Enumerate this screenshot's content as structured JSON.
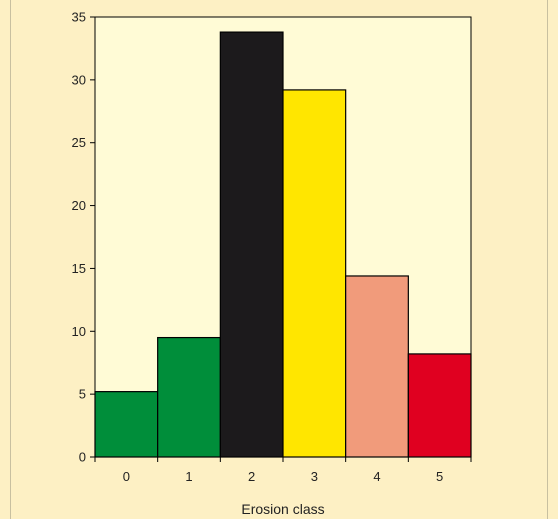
{
  "chart_data": {
    "type": "bar",
    "title": "",
    "xlabel": "Erosion class",
    "ylabel": "",
    "categories": [
      "0",
      "1",
      "2",
      "3",
      "4",
      "5"
    ],
    "values": [
      5.2,
      9.5,
      33.8,
      29.2,
      14.4,
      8.2
    ],
    "colors": [
      "#008e3a",
      "#008e3a",
      "#1c1a1c",
      "#ffe600",
      "#f19b7b",
      "#e00020"
    ],
    "ylim": [
      0,
      35
    ],
    "yticks": [
      0,
      5,
      10,
      15,
      20,
      25,
      30,
      35
    ],
    "grid": false,
    "legend": "none",
    "plot_background": "#fffbd6",
    "bar_edge_color": "#000000"
  }
}
